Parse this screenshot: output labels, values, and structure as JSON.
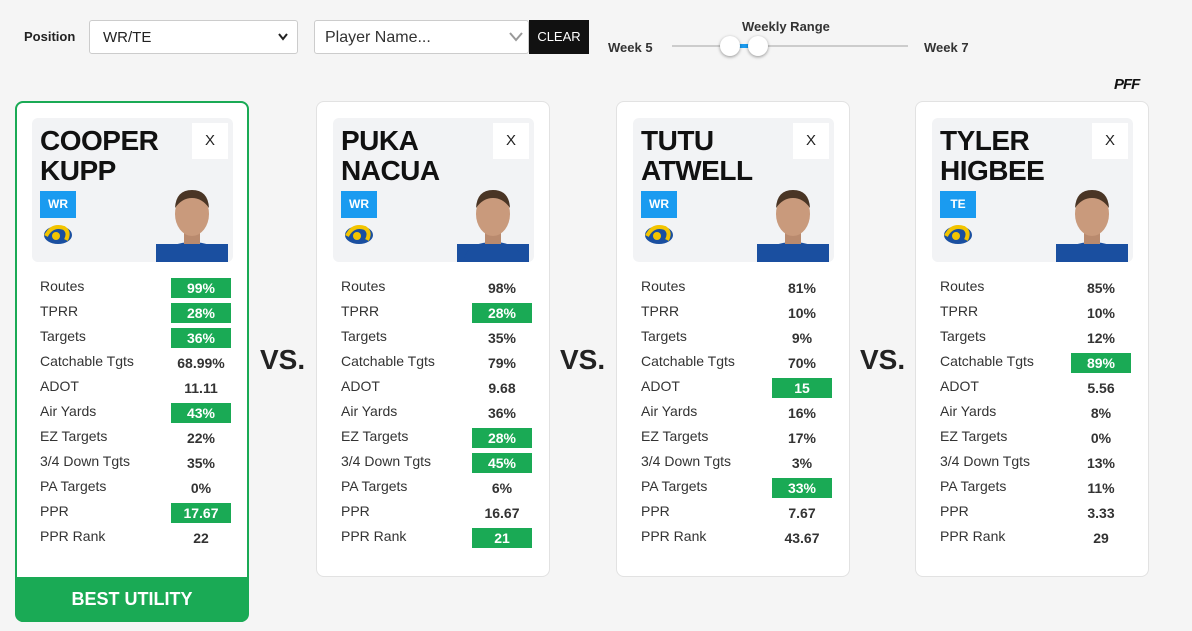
{
  "controls": {
    "position_label": "Position",
    "position_value": "WR/TE",
    "player_placeholder": "Player Name...",
    "clear": "CLEAR",
    "range_title": "Weekly Range",
    "range_start": "Week 5",
    "range_end": "Week 7"
  },
  "logo": "PFF",
  "vs": "VS.",
  "best_label": "BEST UTILITY",
  "close": "X",
  "stat_labels": [
    "Routes",
    "TPRR",
    "Targets",
    "Catchable Tgts",
    "ADOT",
    "Air Yards",
    "EZ Targets",
    "3/4 Down Tgts",
    "PA Targets",
    "PPR",
    "PPR Rank"
  ],
  "players": [
    {
      "first": "COOPER",
      "last": "KUPP",
      "position": "WR",
      "best": true,
      "stats": [
        "99%",
        "28%",
        "36%",
        "68.99%",
        "11.11",
        "43%",
        "22%",
        "35%",
        "0%",
        "17.67",
        "22"
      ],
      "highlighted": [
        true,
        true,
        true,
        false,
        false,
        true,
        false,
        false,
        false,
        true,
        false
      ]
    },
    {
      "first": "PUKA",
      "last": "NACUA",
      "position": "WR",
      "best": false,
      "stats": [
        "98%",
        "28%",
        "35%",
        "79%",
        "9.68",
        "36%",
        "28%",
        "45%",
        "6%",
        "16.67",
        "21"
      ],
      "highlighted": [
        false,
        true,
        false,
        false,
        false,
        false,
        true,
        true,
        false,
        false,
        true
      ]
    },
    {
      "first": "TUTU",
      "last": "ATWELL",
      "position": "WR",
      "best": false,
      "stats": [
        "81%",
        "10%",
        "9%",
        "70%",
        "15",
        "16%",
        "17%",
        "3%",
        "33%",
        "7.67",
        "43.67"
      ],
      "highlighted": [
        false,
        false,
        false,
        false,
        true,
        false,
        false,
        false,
        true,
        false,
        false
      ]
    },
    {
      "first": "TYLER",
      "last": "HIGBEE",
      "position": "TE",
      "best": false,
      "stats": [
        "85%",
        "10%",
        "12%",
        "89%",
        "5.56",
        "8%",
        "0%",
        "13%",
        "11%",
        "3.33",
        "29"
      ],
      "highlighted": [
        false,
        false,
        false,
        true,
        false,
        false,
        false,
        false,
        false,
        false,
        false
      ]
    }
  ]
}
